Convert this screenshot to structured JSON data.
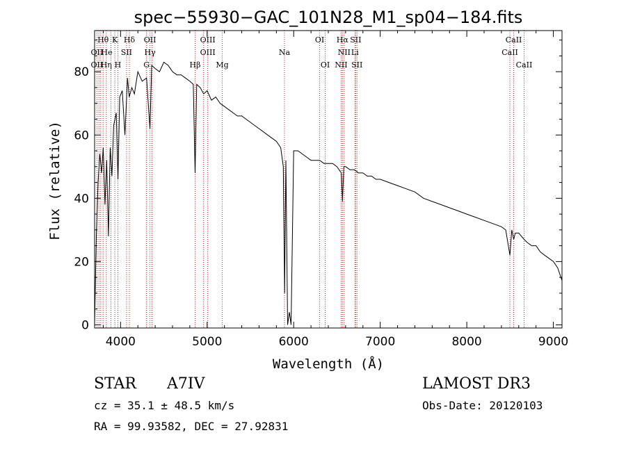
{
  "chart_data": {
    "type": "line",
    "title": "spec−55930−GAC_101N28_M1_sp04−184.fits",
    "xlabel": "Wavelength (Å)",
    "ylabel": "Flux (relative)",
    "xlim": [
      3700,
      9100
    ],
    "ylim": [
      -1,
      93
    ],
    "xticks": [
      4000,
      5000,
      6000,
      7000,
      8000,
      9000
    ],
    "yticks": [
      0,
      20,
      40,
      60,
      80
    ],
    "grid": false,
    "series": [
      {
        "name": "spectrum",
        "x": [
          3700,
          3720,
          3740,
          3760,
          3780,
          3800,
          3820,
          3840,
          3860,
          3880,
          3900,
          3920,
          3950,
          3970,
          3990,
          4020,
          4050,
          4080,
          4100,
          4130,
          4160,
          4200,
          4250,
          4300,
          4340,
          4360,
          4400,
          4450,
          4500,
          4550,
          4600,
          4650,
          4700,
          4750,
          4800,
          4840,
          4861,
          4880,
          4920,
          4960,
          5000,
          5050,
          5100,
          5150,
          5200,
          5250,
          5300,
          5350,
          5400,
          5450,
          5500,
          5550,
          5600,
          5650,
          5700,
          5750,
          5800,
          5850,
          5880,
          5895,
          5910,
          5930,
          5950,
          5970,
          6000,
          6050,
          6100,
          6150,
          6200,
          6250,
          6300,
          6350,
          6400,
          6450,
          6500,
          6550,
          6563,
          6580,
          6600,
          6650,
          6700,
          6750,
          6800,
          6850,
          6900,
          6950,
          7000,
          7100,
          7200,
          7300,
          7400,
          7500,
          7600,
          7700,
          7800,
          7900,
          8000,
          8100,
          8200,
          8300,
          8400,
          8450,
          8498,
          8520,
          8542,
          8560,
          8600,
          8662,
          8700,
          8750,
          8800,
          8850,
          8900,
          8950,
          9000,
          9050,
          9100
        ],
        "y": [
          0,
          28,
          45,
          54,
          48,
          56,
          38,
          52,
          28,
          56,
          47,
          63,
          67,
          46,
          72,
          74,
          60,
          78,
          72,
          75,
          73,
          80,
          77,
          78,
          62,
          82,
          81,
          80,
          83,
          82,
          80,
          79,
          79,
          78,
          77,
          76,
          48,
          76,
          75,
          73,
          74,
          71,
          72,
          70,
          69,
          68,
          67,
          66,
          66,
          65,
          64,
          63,
          62,
          61,
          60,
          59,
          58,
          56,
          50,
          10,
          52,
          0,
          4,
          0,
          55,
          55,
          54,
          53,
          52,
          52,
          52,
          51,
          51,
          51,
          50,
          48,
          39,
          50,
          50,
          49,
          49,
          48,
          48,
          47,
          47,
          46,
          46,
          45,
          44,
          43,
          42,
          40,
          39,
          38,
          37,
          36,
          35,
          34,
          33,
          32,
          31,
          30,
          22,
          30,
          27,
          29,
          29,
          27,
          26,
          25,
          25,
          23,
          22,
          21,
          20,
          18,
          14
        ]
      }
    ],
    "line_labels": [
      {
        "text": "Hθ",
        "wave": 3798,
        "row": 1
      },
      {
        "text": "K",
        "wave": 3934,
        "row": 1
      },
      {
        "text": "Hδ",
        "wave": 4102,
        "row": 1
      },
      {
        "text": "OII",
        "wave": 4340,
        "row": 1
      },
      {
        "text": "OIII",
        "wave": 5007,
        "row": 1
      },
      {
        "text": "OI",
        "wave": 6300,
        "row": 1
      },
      {
        "text": "Hα",
        "wave": 6563,
        "row": 1
      },
      {
        "text": "SII",
        "wave": 6716,
        "row": 1
      },
      {
        "text": "CaII",
        "wave": 8542,
        "row": 1
      },
      {
        "text": "OII",
        "wave": 3727,
        "row": 2
      },
      {
        "text": "He",
        "wave": 3840,
        "row": 2
      },
      {
        "text": "SII",
        "wave": 4069,
        "row": 2
      },
      {
        "text": "Hγ",
        "wave": 4340,
        "row": 2
      },
      {
        "text": "OIII",
        "wave": 5007,
        "row": 2
      },
      {
        "text": "Na",
        "wave": 5893,
        "row": 2
      },
      {
        "text": "NII",
        "wave": 6583,
        "row": 2
      },
      {
        "text": "Li",
        "wave": 6708,
        "row": 2
      },
      {
        "text": "CaII",
        "wave": 8498,
        "row": 2
      },
      {
        "text": "OII",
        "wave": 3727,
        "row": 3
      },
      {
        "text": "Hη",
        "wave": 3835,
        "row": 3
      },
      {
        "text": "H",
        "wave": 3969,
        "row": 3
      },
      {
        "text": "G",
        "wave": 4300,
        "row": 3
      },
      {
        "text": "Hβ",
        "wave": 4861,
        "row": 3
      },
      {
        "text": "Mg",
        "wave": 5175,
        "row": 3
      },
      {
        "text": "OI",
        "wave": 6364,
        "row": 3
      },
      {
        "text": "NII",
        "wave": 6548,
        "row": 3
      },
      {
        "text": "SII",
        "wave": 6731,
        "row": 3
      },
      {
        "text": "CaII",
        "wave": 8662,
        "row": 3
      }
    ],
    "line_marks": [
      3727,
      3750,
      3771,
      3798,
      3835,
      3889,
      3934,
      3969,
      4069,
      4102,
      4300,
      4340,
      4363,
      4861,
      4959,
      5007,
      5175,
      5893,
      6300,
      6364,
      6548,
      6563,
      6583,
      6708,
      6716,
      6731,
      8498,
      8542,
      8662
    ]
  },
  "info": {
    "object_class": "STAR",
    "subclass": "A7IV",
    "survey": "LAMOST  DR3",
    "cz": "cz = 35.1 ± 48.5 km/s",
    "obs_date": "Obs-Date: 20120103",
    "coords": "RA =  99.93582, DEC =  27.92831"
  }
}
